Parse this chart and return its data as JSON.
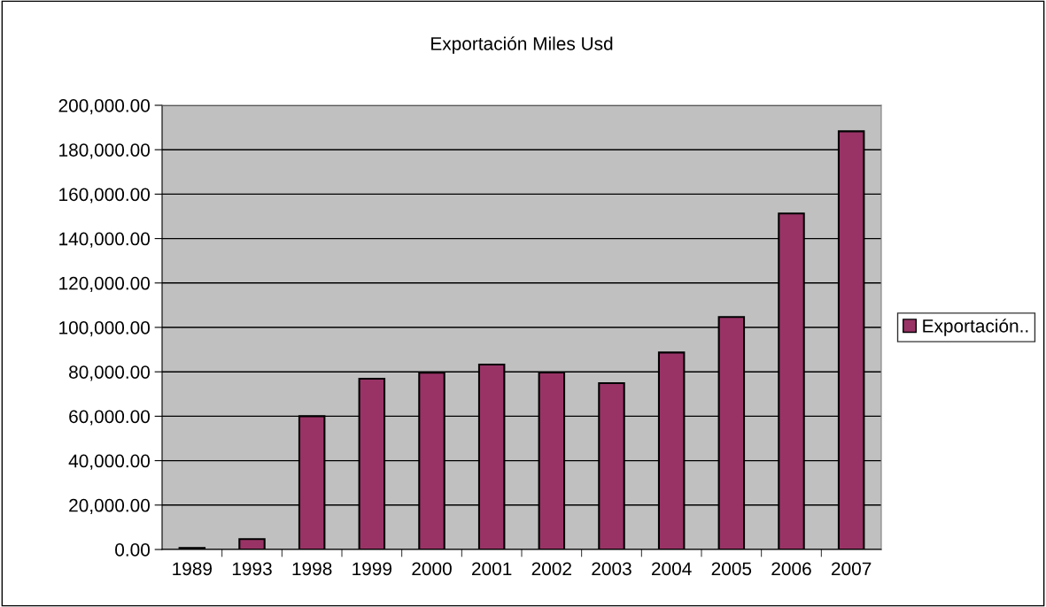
{
  "chart_data": {
    "type": "bar",
    "title": "Exportación Miles Usd",
    "categories": [
      "1989",
      "1993",
      "1998",
      "1999",
      "2000",
      "2001",
      "2002",
      "2003",
      "2004",
      "2005",
      "2006",
      "2007"
    ],
    "series": [
      {
        "name": "Exportación..",
        "color": "#993366",
        "values": [
          700,
          4700,
          60000,
          76900,
          79600,
          83300,
          79700,
          74900,
          88700,
          104700,
          151300,
          188300
        ]
      }
    ],
    "ylim": [
      0,
      200000
    ],
    "yticks": [
      {
        "value": 0,
        "label": "0.00"
      },
      {
        "value": 20000,
        "label": "20,000.00"
      },
      {
        "value": 40000,
        "label": "40,000.00"
      },
      {
        "value": 60000,
        "label": "60,000.00"
      },
      {
        "value": 80000,
        "label": "80,000.00"
      },
      {
        "value": 100000,
        "label": "100,000.00"
      },
      {
        "value": 120000,
        "label": "120,000.00"
      },
      {
        "value": 140000,
        "label": "140,000.00"
      },
      {
        "value": 160000,
        "label": "160,000.00"
      },
      {
        "value": 180000,
        "label": "180,000.00"
      },
      {
        "value": 200000,
        "label": "200,000.00"
      }
    ],
    "grid": "y",
    "legend": "right"
  }
}
